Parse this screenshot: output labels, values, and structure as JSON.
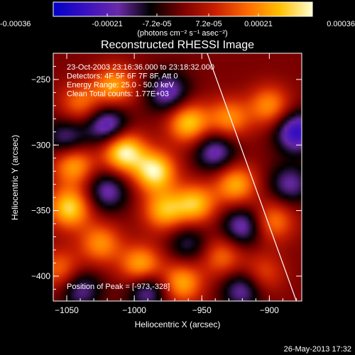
{
  "colorbar": {
    "tick_labels": [
      "-0.00036",
      "-0.00021",
      "-7.2e-05",
      "7.2e-05",
      "0.00021",
      "0.00036"
    ],
    "unit_label": "(photons cm⁻² s⁻¹ asec⁻²)",
    "range": [
      -0.00036,
      0.00036
    ],
    "colors": [
      "#0000c8",
      "#3a10c0",
      "#6a2aa8",
      "#000000",
      "#7a0000",
      "#c81e00",
      "#ff6a00",
      "#ffc000",
      "#ffffd0"
    ]
  },
  "chart_data": {
    "type": "heatmap",
    "title": "Reconstructed RHESSI Image",
    "xlabel": "Heliocentric X (arcsec)",
    "ylabel": "Heliocentric Y (arcsec)",
    "xlim": [
      -1060,
      -876
    ],
    "ylim": [
      -419,
      -230
    ],
    "x_ticks": [
      -1050,
      -1000,
      -950,
      -900
    ],
    "y_ticks": [
      -250,
      -300,
      -350,
      -400
    ],
    "x_tick_labels": [
      "−1050",
      "−1000",
      "−950",
      "−900"
    ],
    "y_tick_labels": [
      "−250",
      "−300",
      "−350",
      "−400"
    ],
    "limb_line": [
      [
        -946,
        -230
      ],
      [
        -880,
        -419
      ]
    ],
    "annotations": [
      "23-Oct-2003 23:16:36.000 to 23:18:32.000",
      "Detectors: 4F 5F 6F 7F 8F, Att 0",
      "Energy Range: 25.0 - 50.0 keV",
      "Clean     Total counts: 1.77E+03"
    ],
    "peak_label": "Position of Peak = [-973,-328]",
    "peak": [
      -973,
      -328
    ],
    "sources": [
      {
        "x": -1008,
        "y": -305,
        "v": 1.0
      },
      {
        "x": -985,
        "y": -320,
        "v": 0.95
      },
      {
        "x": -1048,
        "y": -348,
        "v": 0.85
      },
      {
        "x": -1045,
        "y": -315,
        "v": 0.7
      },
      {
        "x": -960,
        "y": -283,
        "v": 0.8
      },
      {
        "x": -978,
        "y": -350,
        "v": 0.7
      },
      {
        "x": -955,
        "y": -345,
        "v": 0.75
      },
      {
        "x": -925,
        "y": -330,
        "v": 0.7
      },
      {
        "x": -930,
        "y": -280,
        "v": 0.6
      },
      {
        "x": -1015,
        "y": -255,
        "v": 0.65
      },
      {
        "x": -1040,
        "y": -268,
        "v": 0.5
      },
      {
        "x": -995,
        "y": -392,
        "v": 0.75
      },
      {
        "x": -965,
        "y": -405,
        "v": 0.7
      },
      {
        "x": -1025,
        "y": -375,
        "v": 0.6
      },
      {
        "x": -1055,
        "y": -395,
        "v": 0.5
      },
      {
        "x": -935,
        "y": -385,
        "v": 0.5
      },
      {
        "x": -900,
        "y": -270,
        "v": 0.6
      },
      {
        "x": -897,
        "y": -358,
        "v": 0.55
      },
      {
        "x": -905,
        "y": -398,
        "v": 0.4
      },
      {
        "x": -1020,
        "y": -285,
        "v": -0.7
      },
      {
        "x": -975,
        "y": -260,
        "v": -0.6
      },
      {
        "x": -1050,
        "y": -295,
        "v": -0.5
      },
      {
        "x": -940,
        "y": -305,
        "v": -0.6
      },
      {
        "x": -1020,
        "y": -335,
        "v": -0.55
      },
      {
        "x": -920,
        "y": -362,
        "v": -0.6
      },
      {
        "x": -880,
        "y": -290,
        "v": -0.8
      },
      {
        "x": -885,
        "y": -330,
        "v": -0.5
      },
      {
        "x": -990,
        "y": -410,
        "v": -0.6
      },
      {
        "x": -1040,
        "y": -410,
        "v": -0.5
      },
      {
        "x": -920,
        "y": -410,
        "v": -0.55
      },
      {
        "x": -960,
        "y": -375,
        "v": -0.4
      }
    ]
  },
  "footer": {
    "timestamp": "26-May-2013 17:32"
  }
}
